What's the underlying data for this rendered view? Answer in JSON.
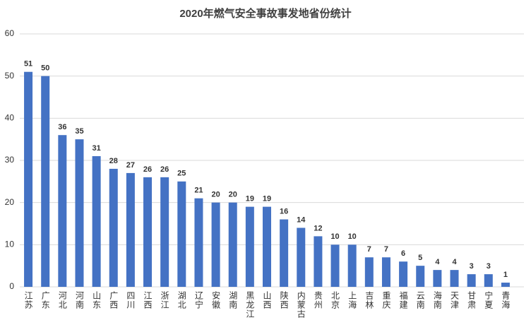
{
  "chart_data": {
    "type": "bar",
    "title": "2020年燃气安全事故事发地省份统计",
    "categories": [
      "江苏",
      "广东",
      "河北",
      "河南",
      "山东",
      "广西",
      "四川",
      "江西",
      "浙江",
      "湖北",
      "辽宁",
      "安徽",
      "湖南",
      "黑龙江",
      "山西",
      "陕西",
      "内蒙古",
      "贵州",
      "北京",
      "上海",
      "吉林",
      "重庆",
      "福建",
      "云南",
      "海南",
      "天津",
      "甘肃",
      "宁夏",
      "青海"
    ],
    "values": [
      51,
      50,
      36,
      35,
      31,
      28,
      27,
      26,
      26,
      25,
      21,
      20,
      20,
      19,
      19,
      16,
      14,
      12,
      10,
      10,
      7,
      7,
      6,
      5,
      4,
      4,
      3,
      3,
      1
    ],
    "color": "#4472c4",
    "ylim": [
      0,
      60
    ],
    "yticks": [
      0,
      10,
      20,
      30,
      40,
      50,
      60
    ],
    "grid": true
  }
}
